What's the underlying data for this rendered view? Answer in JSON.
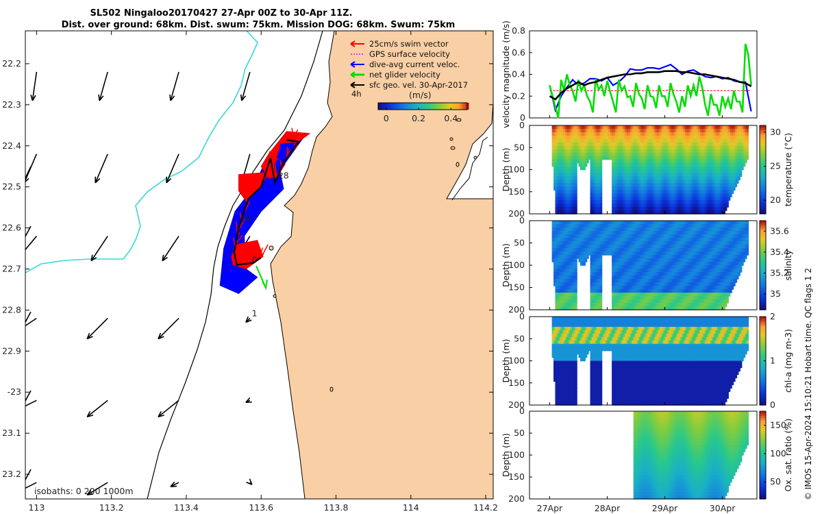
{
  "title_line1": "SL502 Ningaloo20170427 27-Apr 00Z to 30-Apr 11Z.",
  "title_line2": "Dist. over ground: 68km. Dist. swum: 75km. Mission DOG: 68km. Swum: 75km",
  "credit": "© IMOS 15-Apr-2024 15:10:21 Hobart time. QC flags 1  2",
  "colors": {
    "land": "#f9cfa5",
    "coast": "#35d7da",
    "track_red": "#ff0000",
    "track_blue": "#0000ff",
    "green": "#00dd00",
    "grid_black": "#000000"
  },
  "chart_data": [
    {
      "type": "map",
      "xlim": [
        112.97,
        114.22
      ],
      "ylim": [
        -23.26,
        -22.12
      ],
      "xticks": [
        113,
        113.2,
        113.4,
        113.6,
        113.8,
        114,
        114.2
      ],
      "yticks": [
        -22.2,
        -22.3,
        -22.4,
        -22.5,
        -22.6,
        -22.7,
        -22.8,
        -22.9,
        -23,
        -23.1,
        -23.2
      ],
      "xtick_labels": [
        "113",
        "113.2",
        "113.4",
        "113.6",
        "113.8",
        "114",
        "114.2"
      ],
      "ytick_labels": [
        "22.2",
        "22.3",
        "22.4",
        "22.5",
        "22.6",
        "22.7",
        "22.8",
        "22.9",
        "-23",
        "23.1",
        "23.2"
      ],
      "legend": [
        "25cm/s swim vector",
        "GPS surface velocity",
        "dive-avg current veloc.",
        "net glider velocity",
        "sfc geo. vel. 30-Apr-2017"
      ],
      "scale_label": "4h",
      "colorbar_label": "(m/s)",
      "colorbar_ticks": [
        0,
        0.2,
        0.4
      ],
      "colorbar_tick_labels": [
        "0",
        "0.2",
        "0.4"
      ],
      "colorbar_range": [
        -0.05,
        0.5
      ],
      "isobath_label": "isobaths: 0   200  1000m",
      "day_labels": [
        {
          "text": "28",
          "lon": 113.645,
          "lat": -22.48
        },
        {
          "text": "29",
          "lon": 113.545,
          "lat": -22.585
        },
        {
          "text": "0",
          "lon": 113.575,
          "lat": -22.685
        },
        {
          "text": "1",
          "lon": 113.575,
          "lat": -22.815
        }
      ],
      "vector_field": {
        "lons": [
          113.0,
          113.19,
          113.38,
          113.57
        ],
        "lats": [
          -22.22,
          -22.42,
          -22.62,
          -22.82,
          -23.02,
          -23.22
        ],
        "vectors": [
          [
            [
              -0.01,
              -0.07
            ],
            [
              -0.02,
              -0.07
            ],
            [
              -0.02,
              -0.07
            ],
            [
              -0.02,
              -0.07
            ]
          ],
          [
            [
              -0.03,
              -0.07
            ],
            [
              -0.03,
              -0.07
            ],
            [
              -0.03,
              -0.07
            ],
            [
              -0.02,
              -0.07
            ]
          ],
          [
            [
              -0.05,
              -0.06
            ],
            [
              -0.04,
              -0.06
            ],
            [
              -0.04,
              -0.06
            ],
            [
              -0.03,
              -0.05
            ]
          ],
          [
            [
              -0.06,
              -0.04
            ],
            [
              -0.05,
              -0.05
            ],
            [
              -0.05,
              -0.05
            ],
            [
              -0.01,
              -0.01
            ]
          ],
          [
            [
              -0.06,
              -0.03
            ],
            [
              -0.05,
              -0.04
            ],
            [
              -0.05,
              -0.04
            ],
            [
              -0.01,
              -0.005
            ]
          ],
          [
            [
              -0.06,
              -0.03
            ],
            [
              -0.05,
              -0.03
            ],
            [
              -0.02,
              -0.01
            ],
            [
              0.005,
              -0.005
            ]
          ]
        ]
      },
      "glider_track": [
        [
          113.668,
          -22.386
        ],
        [
          113.7,
          -22.39
        ],
        [
          113.66,
          -22.44
        ],
        [
          113.637,
          -22.49
        ],
        [
          113.625,
          -22.43
        ],
        [
          113.6,
          -22.5
        ],
        [
          113.565,
          -22.53
        ],
        [
          113.54,
          -22.6
        ],
        [
          113.528,
          -22.66
        ],
        [
          113.535,
          -22.69
        ],
        [
          113.58,
          -22.685
        ],
        [
          113.6,
          -22.672
        ]
      ],
      "current_blobs": [
        {
          "color": "blue",
          "points": [
            [
              113.665,
              -22.38
            ],
            [
              113.713,
              -22.38
            ],
            [
              113.65,
              -22.46
            ],
            [
              113.66,
              -22.505
            ],
            [
              113.6,
              -22.56
            ],
            [
              113.555,
              -22.62
            ],
            [
              113.56,
              -22.7
            ],
            [
              113.59,
              -22.72
            ],
            [
              113.54,
              -22.76
            ],
            [
              113.49,
              -22.74
            ],
            [
              113.5,
              -22.65
            ],
            [
              113.53,
              -22.56
            ],
            [
              113.58,
              -22.5
            ],
            [
              113.61,
              -22.44
            ],
            [
              113.64,
              -22.4
            ]
          ]
        },
        {
          "color": "red",
          "points": [
            [
              113.668,
              -22.365
            ],
            [
              113.73,
              -22.37
            ],
            [
              113.7,
              -22.39
            ],
            [
              113.652,
              -22.395
            ],
            [
              113.635,
              -22.45
            ],
            [
              113.64,
              -22.475
            ],
            [
              113.62,
              -22.48
            ],
            [
              113.6,
              -22.45
            ],
            [
              113.62,
              -22.42
            ]
          ]
        },
        {
          "color": "red",
          "points": [
            [
              113.54,
              -22.47
            ],
            [
              113.61,
              -22.465
            ],
            [
              113.6,
              -22.5
            ],
            [
              113.56,
              -22.535
            ],
            [
              113.54,
              -22.51
            ]
          ]
        },
        {
          "color": "red",
          "points": [
            [
              113.535,
              -22.64
            ],
            [
              113.59,
              -22.63
            ],
            [
              113.605,
              -22.67
            ],
            [
              113.56,
              -22.7
            ],
            [
              113.525,
              -22.69
            ],
            [
              113.52,
              -22.67
            ]
          ]
        }
      ]
    },
    {
      "type": "line",
      "ylabel": "velocity magnitude (m/s)",
      "x": [
        0,
        0.1,
        0.2,
        0.3,
        0.4,
        0.5,
        0.6,
        0.7,
        0.8,
        0.9,
        1.0,
        1.1,
        1.2,
        1.3,
        1.4,
        1.5,
        1.6,
        1.7,
        1.8,
        1.9,
        2.0,
        2.1,
        2.2,
        2.3,
        2.4,
        2.5,
        2.6,
        2.7,
        2.8,
        2.9,
        3.0,
        3.1,
        3.2,
        3.3,
        3.4,
        3.5
      ],
      "ylim": [
        0,
        0.8
      ],
      "yticks": [
        0,
        0.2,
        0.4,
        0.6,
        0.8
      ],
      "ytick_labels": [
        "0",
        "0.2",
        "0.4",
        "0.6",
        "0.8"
      ],
      "series": [
        {
          "name": "GPS surface velocity",
          "values": [
            0.25,
            0.25,
            0.25,
            0.25,
            0.25,
            0.26,
            0.25,
            0.25,
            0.25,
            0.25,
            0.25,
            0.25,
            0.25,
            0.25,
            0.25,
            0.25,
            0.25,
            0.25,
            0.25,
            0.25,
            0.25,
            0.26,
            0.25,
            0.25,
            0.25,
            0.25,
            0.25,
            0.25,
            0.25,
            0.25,
            0.25,
            0.25,
            0.25,
            0.25,
            0.25,
            0.25
          ]
        },
        {
          "name": "dive-avg current veloc.",
          "values": [
            0.3,
            0.07,
            0.2,
            0.28,
            0.35,
            0.3,
            0.32,
            0.36,
            0.36,
            0.34,
            0.37,
            0.3,
            0.33,
            0.38,
            0.45,
            0.44,
            0.44,
            0.46,
            0.46,
            0.45,
            0.47,
            0.49,
            0.45,
            0.4,
            0.43,
            0.44,
            0.41,
            0.38,
            0.37,
            0.38,
            0.36,
            0.37,
            0.34,
            0.33,
            0.33,
            0.06
          ]
        },
        {
          "name": "net glider velocity",
          "values": [
            0.3,
            0.1,
            0.35,
            0.4,
            0.25,
            0.35,
            0.3,
            0.15,
            0.36,
            0.3,
            0.34,
            0.15,
            0.35,
            0.29,
            0.2,
            0.32,
            0.18,
            0.3,
            0.19,
            0.3,
            0.2,
            0.32,
            0.15,
            0.2,
            0.3,
            0.3,
            0.38,
            0.12,
            0.22,
            0.12,
            0.2,
            0.18,
            0.25,
            0.15,
            0.68,
            0.3
          ]
        },
        {
          "name": "sfc geo. vel. 30-Apr-2017",
          "values": [
            0.2,
            0.17,
            0.23,
            0.27,
            0.3,
            0.33,
            0.3,
            0.32,
            0.33,
            0.35,
            0.37,
            0.38,
            0.39,
            0.4,
            0.4,
            0.41,
            0.41,
            0.42,
            0.42,
            0.42,
            0.43,
            0.43,
            0.43,
            0.42,
            0.42,
            0.41,
            0.4,
            0.4,
            0.39,
            0.38,
            0.37,
            0.36,
            0.35,
            0.33,
            0.32,
            0.29
          ]
        }
      ]
    },
    {
      "type": "heatmap",
      "ylabel": "Depth (m)",
      "clabel": "temperature (°C)",
      "ylim": [
        200,
        0
      ],
      "yticks": [
        0,
        50,
        100,
        150,
        200
      ],
      "cticks": [
        20,
        25,
        30
      ],
      "clim": [
        18,
        31
      ],
      "palette": "parula"
    },
    {
      "type": "heatmap",
      "ylabel": "Depth (m)",
      "clabel": "salinity",
      "ylim": [
        200,
        0
      ],
      "yticks": [
        0,
        50,
        100,
        150,
        200
      ],
      "cticks": [
        35,
        35.2,
        35.4,
        35.6
      ],
      "clim": [
        34.85,
        35.7
      ],
      "palette": "parula"
    },
    {
      "type": "heatmap",
      "ylabel": "Depth (m)",
      "clabel": "chl-a (mg m-3)",
      "ylim": [
        200,
        0
      ],
      "yticks": [
        0,
        50,
        100,
        150,
        200
      ],
      "cticks": [
        0,
        1,
        2
      ],
      "clim": [
        0,
        2
      ],
      "palette": "parula"
    },
    {
      "type": "heatmap",
      "ylabel": "Depth (m)",
      "clabel": "Ox. sat. ratio (%)",
      "ylim": [
        200,
        0
      ],
      "yticks": [
        0,
        50,
        100,
        150,
        200
      ],
      "cticks": [
        50,
        100,
        150
      ],
      "clim": [
        20,
        175
      ],
      "palette": "parula"
    },
    {
      "type": "axis",
      "x_tick_labels": [
        "27Apr",
        "28Apr",
        "29Apr",
        "30Apr"
      ],
      "x_ticks": [
        0,
        1,
        2,
        3
      ],
      "xlim": [
        -0.35,
        3.6
      ]
    }
  ]
}
